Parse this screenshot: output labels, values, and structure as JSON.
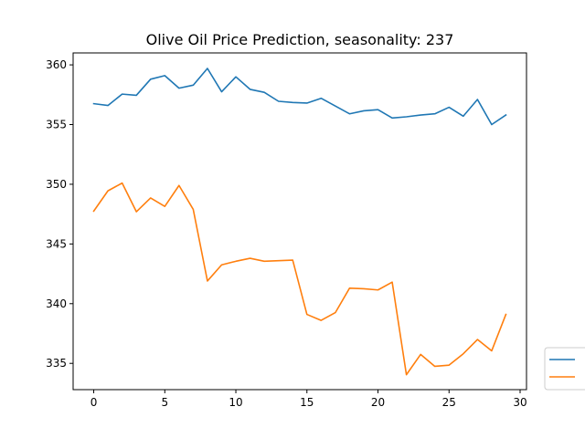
{
  "chart_data": {
    "type": "line",
    "title": "Olive Oil Price Prediction, seasonality: 237",
    "xlabel": "",
    "ylabel": "",
    "xlim": [
      -1.45,
      30.45
    ],
    "ylim": [
      332.8,
      361.0
    ],
    "xticks": [
      0,
      5,
      10,
      15,
      20,
      25,
      30
    ],
    "yticks": [
      335,
      340,
      345,
      350,
      355,
      360
    ],
    "grid": false,
    "legend": {
      "placement": "outside-bottom-right"
    },
    "x": [
      0,
      1,
      2,
      3,
      4,
      5,
      6,
      7,
      8,
      9,
      10,
      11,
      12,
      13,
      14,
      15,
      16,
      17,
      18,
      19,
      20,
      21,
      22,
      23,
      24,
      25,
      26,
      27,
      28,
      29
    ],
    "series": [
      {
        "color": "#1f77b4",
        "values": [
          356.75,
          356.6,
          357.55,
          357.45,
          358.8,
          359.1,
          358.05,
          358.3,
          359.7,
          357.75,
          359.0,
          357.95,
          357.7,
          356.95,
          356.85,
          356.8,
          357.2,
          356.55,
          355.9,
          356.15,
          356.25,
          355.55,
          355.65,
          355.8,
          355.9,
          356.45,
          355.7,
          357.1,
          355.0,
          355.8
        ]
      },
      {
        "color": "#ff7f0e",
        "values": [
          347.75,
          349.45,
          350.1,
          347.7,
          348.85,
          348.15,
          349.9,
          347.9,
          341.9,
          343.25,
          343.55,
          343.8,
          343.55,
          343.6,
          343.65,
          339.1,
          338.6,
          339.25,
          341.3,
          341.25,
          341.15,
          341.8,
          334.05,
          335.75,
          334.75,
          334.85,
          335.8,
          337.0,
          336.05,
          339.1
        ]
      }
    ]
  }
}
